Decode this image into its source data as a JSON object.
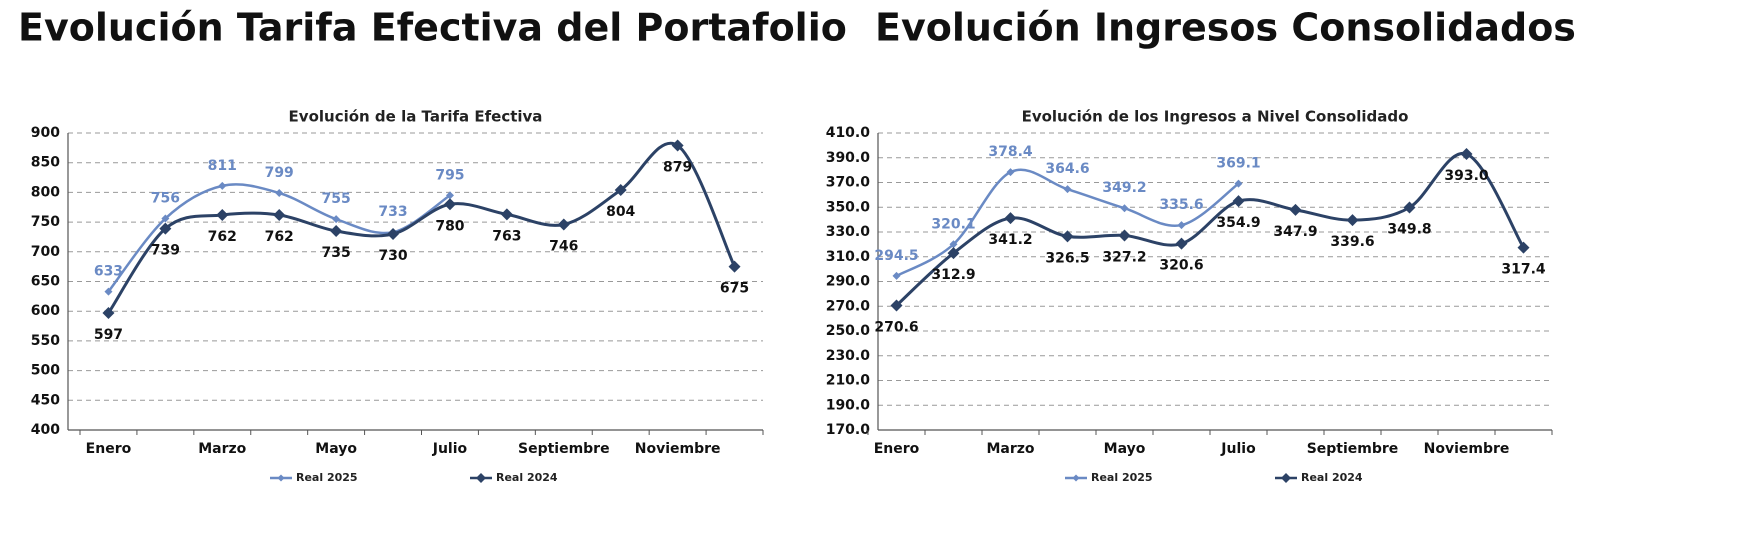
{
  "chart_data": [
    {
      "type": "line",
      "heading": "Evolución Tarifa Efectiva del Portafolio",
      "title": "Evolución de la Tarifa Efectiva",
      "categories": [
        "Enero",
        null,
        "Marzo",
        null,
        "Mayo",
        null,
        "Julio",
        null,
        "Septiembre",
        null,
        "Noviembre",
        null
      ],
      "series": [
        {
          "name": "Real 2025",
          "color": "#6a8ac4",
          "values": [
            633,
            756,
            811,
            799,
            755,
            733,
            795,
            null,
            null,
            null,
            null,
            null
          ]
        },
        {
          "name": "Real 2024",
          "color": "#2c4266",
          "values": [
            597,
            739,
            762,
            762,
            735,
            730,
            780,
            763,
            746,
            804,
            879,
            675
          ]
        }
      ],
      "ylim": [
        400,
        900
      ],
      "yticks": [
        400,
        450,
        500,
        550,
        600,
        650,
        700,
        750,
        800,
        850,
        900
      ],
      "grid": true,
      "legend": "bottom"
    },
    {
      "type": "line",
      "heading": "Evolución Ingresos Consolidados",
      "title": "Evolución de los Ingresos a Nivel Consolidado",
      "categories": [
        "Enero",
        null,
        "Marzo",
        null,
        "Mayo",
        null,
        "Julio",
        null,
        "Septiembre",
        null,
        "Noviembre",
        null
      ],
      "series": [
        {
          "name": "Real 2025",
          "color": "#6a8ac4",
          "values": [
            294.5,
            320.1,
            378.4,
            364.6,
            349.2,
            335.6,
            369.1,
            null,
            null,
            null,
            null,
            null
          ]
        },
        {
          "name": "Real 2024",
          "color": "#2c4266",
          "values": [
            270.6,
            312.9,
            341.2,
            326.5,
            327.2,
            320.6,
            354.9,
            347.9,
            339.6,
            349.8,
            393.0,
            317.4
          ],
          "value_labels": [
            "270.6",
            "312.9",
            "341.2",
            "326.5",
            "327.2",
            "320.6",
            "354.9",
            "347.9",
            "339.6",
            "349.8",
            "393.0",
            "317.4"
          ]
        }
      ],
      "ylim": [
        170,
        410
      ],
      "yticks": [
        {
          "value": 170,
          "label": "170.0"
        },
        {
          "value": 190,
          "label": "190.0"
        },
        {
          "value": 210,
          "label": "210.0"
        },
        {
          "value": 230,
          "label": "230.0"
        },
        {
          "value": 250,
          "label": "250.0"
        },
        {
          "value": 270,
          "label": "270.0"
        },
        {
          "value": 290,
          "label": "290.0"
        },
        {
          "value": 310,
          "label": "310.0"
        },
        {
          "value": 330,
          "label": "330.0"
        },
        {
          "value": 350,
          "label": "350.0"
        },
        {
          "value": 370,
          "label": "370.0"
        },
        {
          "value": 390,
          "label": "390.0"
        },
        {
          "value": 410,
          "label": "410.0"
        }
      ],
      "grid": true,
      "legend": "bottom"
    }
  ]
}
